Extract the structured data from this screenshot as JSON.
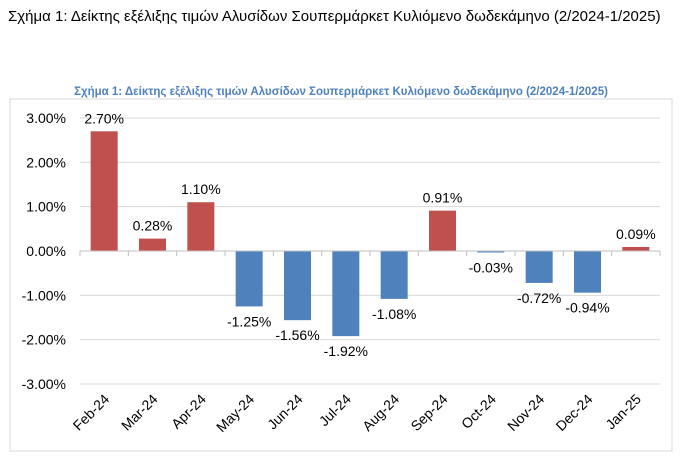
{
  "heading": "Σχήμα 1: Δείκτης εξέλιξης τιμών Αλυσίδων Σουπερμάρκετ Κυλιόμενο δωδεκάμηνο (2/2024-1/2025)",
  "chart_data": {
    "type": "bar",
    "title": "Σχήμα 1: Δείκτης εξέλιξης τιμών Αλυσίδων Σουπερμάρκετ Κυλιόμενο δωδεκάμηνο (2/2024-1/2025)",
    "categories": [
      "Feb-24",
      "Mar-24",
      "Apr-24",
      "May-24",
      "Jun-24",
      "Jul-24",
      "Aug-24",
      "Sep-24",
      "Oct-24",
      "Nov-24",
      "Dec-24",
      "Jan-25"
    ],
    "values": [
      2.7,
      0.28,
      1.1,
      -1.25,
      -1.56,
      -1.92,
      -1.08,
      0.91,
      -0.03,
      -0.72,
      -0.94,
      0.09
    ],
    "data_labels": [
      "2.70%",
      "0.28%",
      "1.10%",
      "-1.25%",
      "-1.56%",
      "-1.92%",
      "-1.08%",
      "0.91%",
      "-0.03%",
      "-0.72%",
      "-0.94%",
      "0.09%"
    ],
    "yticks": [
      "3.00%",
      "2.00%",
      "1.00%",
      "0.00%",
      "-1.00%",
      "-2.00%",
      "-3.00%"
    ],
    "ylim": [
      -3,
      3
    ],
    "xlabel": "",
    "ylabel": "",
    "grid": true,
    "colors": {
      "positive": "#c0504d",
      "negative": "#4f81bd",
      "title": "#4f81bd"
    }
  }
}
